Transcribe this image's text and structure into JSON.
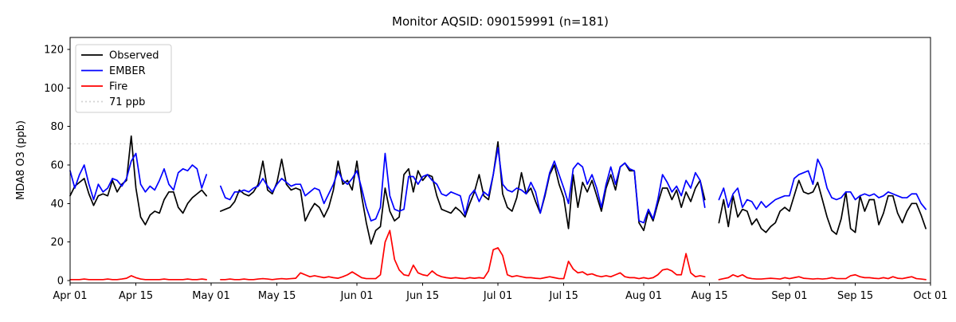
{
  "title": "Monitor AQSID: 090159991 (n=181)",
  "colors": {
    "observed": "#000000",
    "ember": "#0000ff",
    "fire": "#ff0000",
    "threshold": "#d3d3d3",
    "axis": "#000000",
    "background": "#ffffff",
    "legend_border": "#cccccc"
  },
  "chart_data": {
    "type": "line",
    "title": "Monitor AQSID: 090159991 (n=181)",
    "xlabel": "",
    "ylabel": "MDA8 O3 (ppb)",
    "ylim": [
      0,
      120
    ],
    "yticks": [
      0,
      20,
      40,
      60,
      80,
      100,
      120
    ],
    "grid": false,
    "legend_position": "top-left",
    "x_days_total": 183,
    "xticks": [
      {
        "day": 0,
        "label": "Apr 01"
      },
      {
        "day": 14,
        "label": "Apr 15"
      },
      {
        "day": 30,
        "label": "May 01"
      },
      {
        "day": 44,
        "label": "May 15"
      },
      {
        "day": 61,
        "label": "Jun 01"
      },
      {
        "day": 75,
        "label": "Jun 15"
      },
      {
        "day": 91,
        "label": "Jul 01"
      },
      {
        "day": 105,
        "label": "Jul 15"
      },
      {
        "day": 122,
        "label": "Aug 01"
      },
      {
        "day": 136,
        "label": "Aug 15"
      },
      {
        "day": 153,
        "label": "Sep 01"
      },
      {
        "day": 167,
        "label": "Sep 15"
      },
      {
        "day": 183,
        "label": "Oct 01"
      }
    ],
    "threshold": {
      "value": 71,
      "label": "71 ppb"
    },
    "legend": [
      {
        "label": "Observed",
        "color": "#000000",
        "style": "solid"
      },
      {
        "label": "EMBER",
        "color": "#0000ff",
        "style": "solid"
      },
      {
        "label": "Fire",
        "color": "#ff0000",
        "style": "solid"
      },
      {
        "label": "71 ppb",
        "color": "#d3d3d3",
        "style": "dotted"
      }
    ],
    "series": [
      {
        "name": "Observed",
        "color": "#000000",
        "values": [
          44,
          49,
          51,
          53,
          45,
          39,
          44,
          45,
          44,
          52,
          46,
          50,
          52,
          75,
          48,
          33,
          29,
          34,
          36,
          35,
          42,
          46,
          46,
          38,
          35,
          40,
          43,
          45,
          47,
          44,
          null,
          null,
          36,
          37,
          38,
          41,
          47,
          45,
          44,
          46,
          50,
          62,
          47,
          45,
          51,
          63,
          50,
          47,
          48,
          47,
          31,
          36,
          40,
          38,
          33,
          38,
          47,
          62,
          50,
          52,
          47,
          62,
          44,
          30,
          19,
          26,
          28,
          48,
          36,
          31,
          33,
          55,
          58,
          46,
          57,
          52,
          55,
          54,
          44,
          37,
          36,
          35,
          38,
          36,
          33,
          40,
          46,
          55,
          44,
          42,
          55,
          72,
          45,
          38,
          36,
          43,
          56,
          45,
          48,
          41,
          35,
          44,
          55,
          60,
          50,
          43,
          27,
          55,
          38,
          51,
          46,
          52,
          44,
          36,
          48,
          55,
          47,
          59,
          61,
          57,
          57,
          30,
          26,
          36,
          31,
          40,
          48,
          48,
          42,
          47,
          38,
          46,
          41,
          48,
          52,
          42,
          null,
          null,
          30,
          42,
          28,
          44,
          33,
          37,
          36,
          29,
          32,
          27,
          25,
          28,
          30,
          36,
          38,
          36,
          44,
          52,
          46,
          45,
          46,
          51,
          42,
          33,
          26,
          24,
          32,
          46,
          27,
          25,
          44,
          36,
          42,
          42,
          29,
          35,
          44,
          44,
          35,
          30,
          36,
          40,
          40,
          34,
          27
        ]
      },
      {
        "name": "EMBER",
        "color": "#0000ff",
        "values": [
          57,
          48,
          55,
          60,
          50,
          42,
          50,
          46,
          48,
          53,
          52,
          49,
          53,
          62,
          66,
          50,
          46,
          49,
          47,
          52,
          58,
          50,
          47,
          56,
          58,
          57,
          60,
          58,
          48,
          55,
          null,
          null,
          49,
          43,
          42,
          46,
          46,
          47,
          46,
          48,
          49,
          53,
          49,
          46,
          50,
          53,
          51,
          49,
          50,
          50,
          44,
          46,
          48,
          47,
          40,
          45,
          50,
          57,
          52,
          50,
          53,
          57,
          48,
          38,
          31,
          32,
          38,
          66,
          44,
          37,
          36,
          37,
          54,
          54,
          50,
          54,
          55,
          52,
          50,
          45,
          44,
          46,
          45,
          44,
          34,
          44,
          47,
          41,
          46,
          44,
          55,
          69,
          50,
          47,
          46,
          48,
          47,
          45,
          51,
          46,
          35,
          45,
          56,
          62,
          55,
          48,
          40,
          58,
          61,
          59,
          50,
          55,
          48,
          38,
          50,
          59,
          50,
          59,
          61,
          58,
          57,
          31,
          30,
          37,
          32,
          42,
          55,
          51,
          46,
          49,
          44,
          52,
          48,
          56,
          52,
          38,
          null,
          null,
          42,
          48,
          38,
          45,
          48,
          38,
          42,
          41,
          37,
          41,
          38,
          40,
          42,
          43,
          44,
          44,
          53,
          55,
          56,
          57,
          50,
          63,
          58,
          48,
          43,
          42,
          43,
          46,
          46,
          42,
          44,
          45,
          44,
          45,
          43,
          44,
          46,
          45,
          44,
          43,
          43,
          45,
          45,
          40,
          37
        ]
      },
      {
        "name": "Fire",
        "color": "#ff0000",
        "values": [
          0.5,
          0.5,
          0.5,
          0.8,
          0.5,
          0.5,
          0.5,
          0.5,
          0.8,
          0.5,
          0.5,
          0.8,
          1.2,
          2.5,
          1.5,
          0.8,
          0.5,
          0.5,
          0.5,
          0.5,
          0.8,
          0.5,
          0.5,
          0.5,
          0.5,
          0.8,
          0.5,
          0.5,
          0.8,
          0.5,
          null,
          null,
          0.5,
          0.5,
          0.8,
          0.5,
          0.5,
          0.8,
          0.5,
          0.5,
          0.8,
          1,
          0.8,
          0.5,
          0.8,
          1,
          0.8,
          1,
          1.2,
          4,
          3,
          2,
          2.5,
          2,
          1.5,
          2,
          1.5,
          1.2,
          2,
          3,
          4.5,
          3,
          1.5,
          1,
          1,
          1,
          3,
          20,
          26,
          11,
          5.5,
          3,
          2.5,
          8,
          4,
          3,
          2.5,
          5,
          3,
          2,
          1.5,
          1.2,
          1.5,
          1.2,
          1,
          1.5,
          1.2,
          1.5,
          1.2,
          5,
          16,
          17,
          13,
          3,
          2,
          2.5,
          2,
          1.5,
          1.5,
          1.2,
          1,
          1.5,
          2,
          1.5,
          1,
          1,
          10,
          6,
          4,
          4.5,
          3,
          3.5,
          2.5,
          2,
          2.5,
          2,
          3,
          4,
          2,
          1.5,
          1.5,
          1,
          1.5,
          1,
          1.5,
          3,
          5.5,
          6,
          5,
          3,
          3,
          14,
          4,
          2,
          2.5,
          2,
          null,
          null,
          0.5,
          1,
          1.5,
          3,
          2,
          3,
          1.5,
          1,
          0.8,
          0.8,
          1,
          1.2,
          1,
          0.8,
          1.5,
          1,
          1.5,
          2,
          1.2,
          1,
          0.8,
          1,
          0.8,
          1,
          1.5,
          1,
          1,
          1,
          2.5,
          3,
          2,
          1.5,
          1.5,
          1.2,
          1,
          1.5,
          1,
          2,
          1.2,
          1,
          1.5,
          2,
          1,
          0.8,
          0.5
        ]
      }
    ]
  }
}
